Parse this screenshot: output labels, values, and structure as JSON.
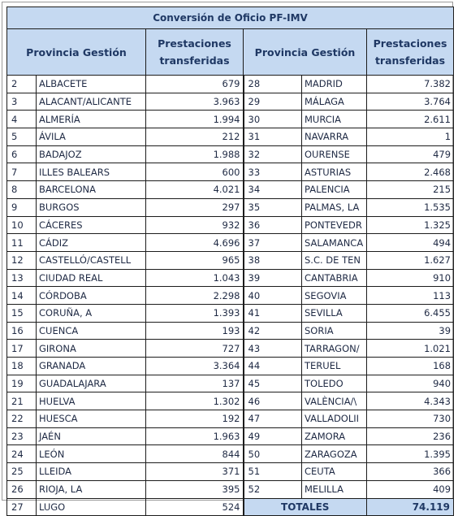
{
  "title": "Conversión de Oficio PF-IMV",
  "headers": {
    "provincia": "Provincia Gestión",
    "prestaciones_l1": "Prestaciones",
    "prestaciones_l2": "transferidas"
  },
  "left_rows": [
    {
      "code": "2",
      "name": "ALBACETE",
      "value": "679"
    },
    {
      "code": "3",
      "name": "ALACANT/ALICANTE",
      "value": "3.963"
    },
    {
      "code": "4",
      "name": "ALMERÍA",
      "value": "1.994"
    },
    {
      "code": "5",
      "name": "ÁVILA",
      "value": "212"
    },
    {
      "code": "6",
      "name": "BADAJOZ",
      "value": "1.988"
    },
    {
      "code": "7",
      "name": "ILLES BALEARS",
      "value": "600"
    },
    {
      "code": "8",
      "name": "BARCELONA",
      "value": "4.021"
    },
    {
      "code": "9",
      "name": "BURGOS",
      "value": "297"
    },
    {
      "code": "10",
      "name": "CÁCERES",
      "value": "932"
    },
    {
      "code": "11",
      "name": "CÁDIZ",
      "value": "4.696"
    },
    {
      "code": "12",
      "name": "CASTELLÓ/CASTELL",
      "value": "965"
    },
    {
      "code": "13",
      "name": "CIUDAD REAL",
      "value": "1.043"
    },
    {
      "code": "14",
      "name": "CÓRDOBA",
      "value": "2.298"
    },
    {
      "code": "15",
      "name": "CORUÑA, A",
      "value": "1.393"
    },
    {
      "code": "16",
      "name": "CUENCA",
      "value": "193"
    },
    {
      "code": "17",
      "name": "GIRONA",
      "value": "727"
    },
    {
      "code": "18",
      "name": "GRANADA",
      "value": "3.364"
    },
    {
      "code": "19",
      "name": "GUADALAJARA",
      "value": "137"
    },
    {
      "code": "21",
      "name": "HUELVA",
      "value": "1.302"
    },
    {
      "code": "22",
      "name": "HUESCA",
      "value": "192"
    },
    {
      "code": "23",
      "name": "JAÉN",
      "value": "1.963"
    },
    {
      "code": "24",
      "name": "LEÓN",
      "value": "844"
    },
    {
      "code": "25",
      "name": "LLEIDA",
      "value": "371"
    },
    {
      "code": "26",
      "name": "RIOJA, LA",
      "value": "395"
    },
    {
      "code": "27",
      "name": "LUGO",
      "value": "524"
    }
  ],
  "right_rows": [
    {
      "code": "28",
      "name": "MADRID",
      "value": "7.382"
    },
    {
      "code": "29",
      "name": "MÁLAGA",
      "value": "3.764"
    },
    {
      "code": "30",
      "name": "MURCIA",
      "value": "2.611"
    },
    {
      "code": "31",
      "name": "NAVARRA",
      "value": "1"
    },
    {
      "code": "32",
      "name": "OURENSE",
      "value": "479"
    },
    {
      "code": "33",
      "name": "ASTURIAS",
      "value": "2.468"
    },
    {
      "code": "34",
      "name": "PALENCIA",
      "value": "215"
    },
    {
      "code": "35",
      "name": "PALMAS, LA",
      "value": "1.535"
    },
    {
      "code": "36",
      "name": "PONTEVEDR",
      "value": "1.325"
    },
    {
      "code": "37",
      "name": "SALAMANCA",
      "value": "494"
    },
    {
      "code": "38",
      "name": "S.C. DE TEN",
      "value": "1.627"
    },
    {
      "code": "39",
      "name": "CANTABRIA",
      "value": "910"
    },
    {
      "code": "40",
      "name": "SEGOVIA",
      "value": "113"
    },
    {
      "code": "41",
      "name": "SEVILLA",
      "value": "6.455"
    },
    {
      "code": "42",
      "name": "SORIA",
      "value": "39"
    },
    {
      "code": "43",
      "name": "TARRAGON/",
      "value": "1.021"
    },
    {
      "code": "44",
      "name": "TERUEL",
      "value": "168"
    },
    {
      "code": "45",
      "name": "TOLEDO",
      "value": "940"
    },
    {
      "code": "46",
      "name": "VALÈNCIA/\\",
      "value": "4.343"
    },
    {
      "code": "47",
      "name": "VALLADOLII",
      "value": "730"
    },
    {
      "code": "49",
      "name": "ZAMORA",
      "value": "236"
    },
    {
      "code": "50",
      "name": "ZARAGOZA",
      "value": "1.395"
    },
    {
      "code": "51",
      "name": "CEUTA",
      "value": "366"
    },
    {
      "code": "52",
      "name": "MELILLA",
      "value": "409"
    }
  ],
  "totals": {
    "label": "TOTALES",
    "value": "74.119"
  },
  "colors": {
    "header_bg": "#c5d9f1",
    "header_text": "#1f3864",
    "cell_text": "#1f2a44"
  }
}
